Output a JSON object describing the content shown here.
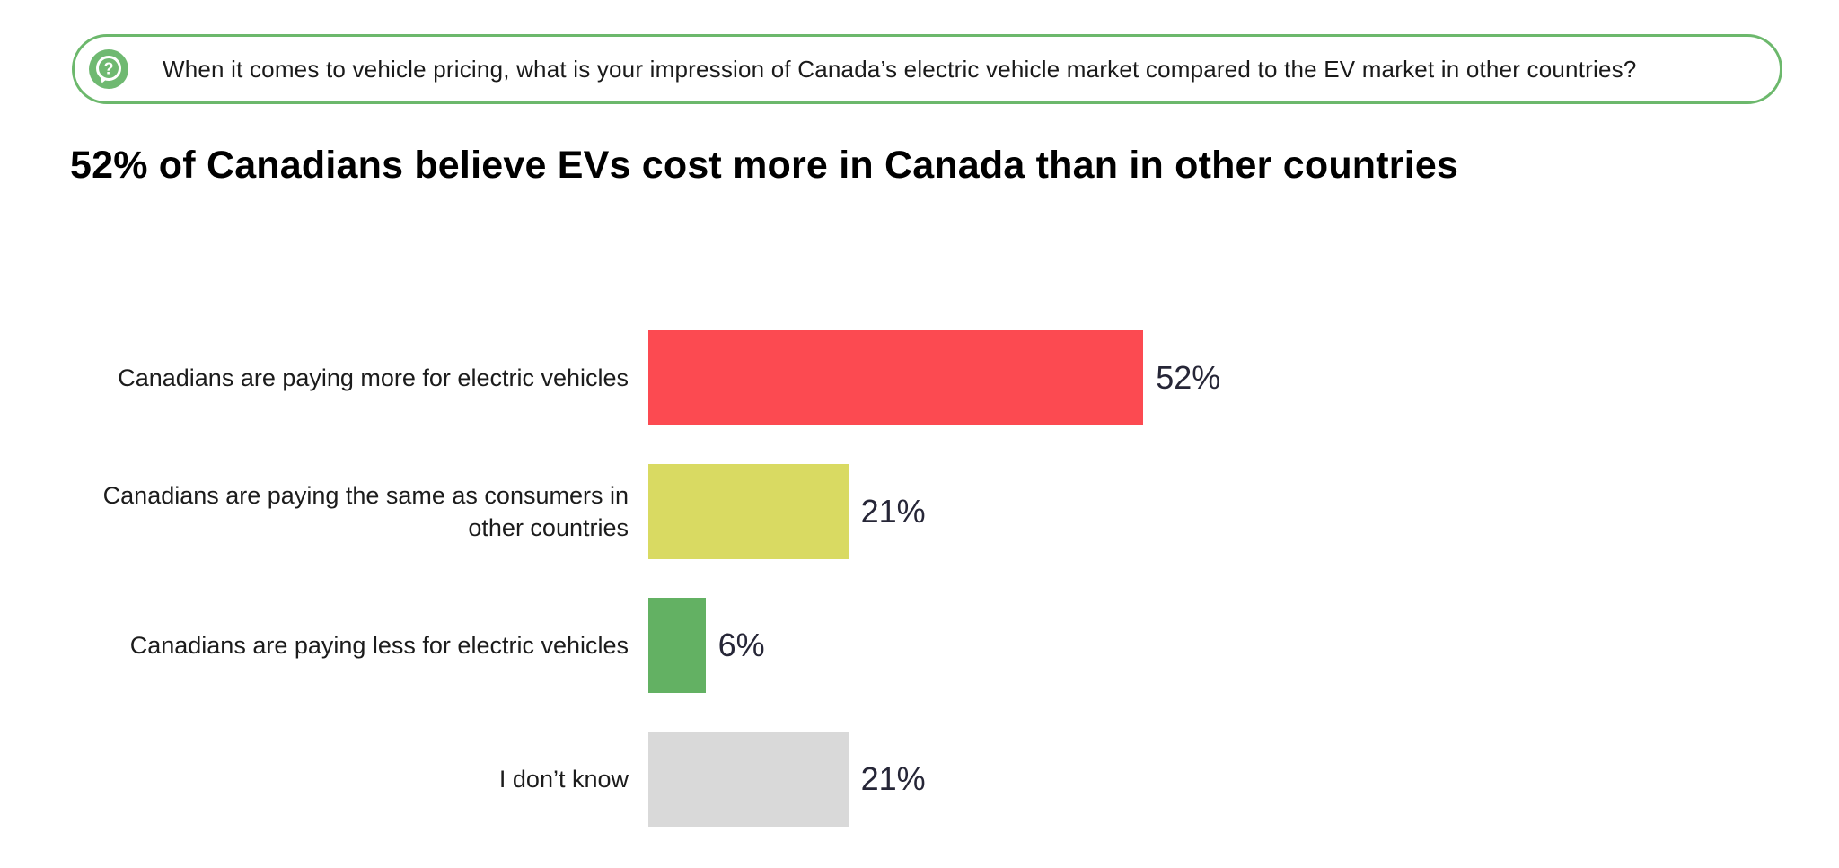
{
  "question_box": {
    "icon": "question-bubble-icon",
    "text": "When it comes to vehicle pricing, what is your impression of Canada’s electric vehicle market compared to the EV market in other countries?"
  },
  "headline": "52% of Canadians believe EVs cost more in Canada than in other countries",
  "chart_data": {
    "type": "bar",
    "orientation": "horizontal",
    "title": "52% of Canadians believe EVs cost more in Canada than in other countries",
    "categories": [
      "Canadians are paying more for electric vehicles",
      "Canadians are paying the same as consumers in other countries",
      "Canadians are paying less for electric vehicles",
      "I don’t know"
    ],
    "values": [
      52,
      21,
      6,
      21
    ],
    "value_labels": [
      "52%",
      "21%",
      "6%",
      "21%"
    ],
    "colors": [
      "#FC4A51",
      "#D9DA62",
      "#63B163",
      "#D9D9D9"
    ],
    "xlabel": "",
    "ylabel": "",
    "xlim": [
      0,
      100
    ],
    "grid": false,
    "legend": false
  },
  "theme": {
    "accent_green": "#6CB86C",
    "icon_green": "#6FB971",
    "value_text_color": "#262637",
    "background": "#ffffff"
  }
}
